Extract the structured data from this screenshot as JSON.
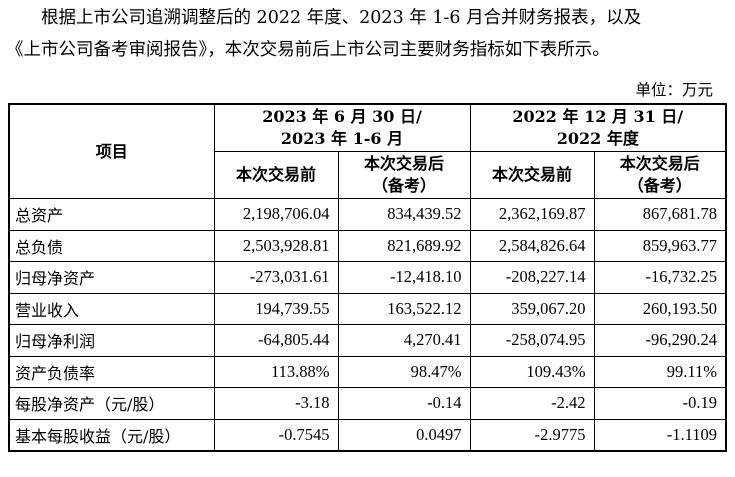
{
  "paragraph": {
    "line1": "根据上市公司追溯调整后的 2022 年度、2023 年 1-6 月合并财务报表，以及",
    "line2": "《上市公司备考审阅报告》，本次交易前后上市公司主要财务指标如下表所示。"
  },
  "unit": "单位：万元",
  "table": {
    "item_header": "项目",
    "period1_line1": "2023 年 6 月 30 日/",
    "period1_line2": "2023 年 1-6 月",
    "period2_line1": "2022 年 12 月 31 日/",
    "period2_line2": "2022 年度",
    "sub": {
      "before": "本次交易前",
      "after_line1": "本次交易后",
      "after_line2": "（备考）"
    },
    "rows": [
      {
        "label": "总资产",
        "p1_before": "2,198,706.04",
        "p1_after": "834,439.52",
        "p2_before": "2,362,169.87",
        "p2_after": "867,681.78"
      },
      {
        "label": "总负债",
        "p1_before": "2,503,928.81",
        "p1_after": "821,689.92",
        "p2_before": "2,584,826.64",
        "p2_after": "859,963.77"
      },
      {
        "label": "归母净资产",
        "p1_before": "-273,031.61",
        "p1_after": "-12,418.10",
        "p2_before": "-208,227.14",
        "p2_after": "-16,732.25"
      },
      {
        "label": "营业收入",
        "p1_before": "194,739.55",
        "p1_after": "163,522.12",
        "p2_before": "359,067.20",
        "p2_after": "260,193.50"
      },
      {
        "label": "归母净利润",
        "p1_before": "-64,805.44",
        "p1_after": "4,270.41",
        "p2_before": "-258,074.95",
        "p2_after": "-96,290.24"
      },
      {
        "label": "资产负债率",
        "p1_before": "113.88%",
        "p1_after": "98.47%",
        "p2_before": "109.43%",
        "p2_after": "99.11%"
      },
      {
        "label": "每股净资产（元/股）",
        "p1_before": "-3.18",
        "p1_after": "-0.14",
        "p2_before": "-2.42",
        "p2_after": "-0.19"
      },
      {
        "label": "基本每股收益（元/股）",
        "p1_before": "-0.7545",
        "p1_after": "0.0497",
        "p2_before": "-2.9775",
        "p2_after": "-1.1109"
      }
    ]
  }
}
